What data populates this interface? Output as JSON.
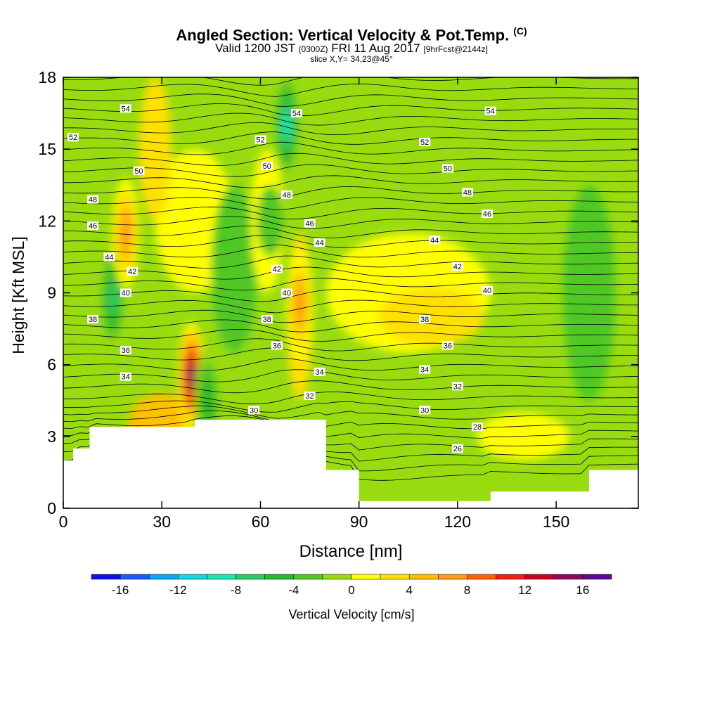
{
  "title": "Angled Section: Vertical Velocity & Pot.Temp.",
  "title_units": "(C)",
  "subtitle": {
    "valid_prefix": "Valid 1200 JST",
    "utc": "(0300Z)",
    "date": "FRI 11 Aug 2017",
    "forecast": "[9hrFcst@2144z]"
  },
  "slice_label": "slice X,Y= 34,23@45°",
  "chart_data": {
    "type": "heatmap",
    "xlabel": "Distance [nm]",
    "ylabel": "Height [Kft MSL]",
    "xlim": [
      0,
      175
    ],
    "ylim": [
      0,
      18
    ],
    "x_ticks": [
      "0",
      "30",
      "60",
      "90",
      "120",
      "150"
    ],
    "x_tick_values": [
      0,
      30,
      60,
      90,
      120,
      150
    ],
    "y_ticks": [
      "0",
      "3",
      "6",
      "9",
      "12",
      "15",
      "18"
    ],
    "y_tick_values": [
      0,
      3,
      6,
      9,
      12,
      15,
      18
    ],
    "colorbar": {
      "label": "Vertical Velocity [cm/s]",
      "ticks": [
        "-16",
        "-12",
        "-8",
        "-4",
        "0",
        "4",
        "8",
        "12",
        "16"
      ],
      "tick_values": [
        -16,
        -12,
        -8,
        -4,
        0,
        4,
        8,
        12,
        16
      ],
      "bins": [
        -18,
        -16,
        -14,
        -12,
        -10,
        -8,
        -6,
        -4,
        -2,
        0,
        2,
        4,
        6,
        8,
        10,
        12,
        14,
        16,
        18
      ],
      "colors": [
        "#1010e8",
        "#1e5af5",
        "#0aa6f0",
        "#10d8e8",
        "#18e8b0",
        "#30c860",
        "#28b828",
        "#50c828",
        "#98dc10",
        "#ffff00",
        "#ffe000",
        "#ffc000",
        "#ff9c18",
        "#ff6010",
        "#f02010",
        "#cc0020",
        "#8c0860",
        "#5c0a90"
      ]
    },
    "terrain_profile": {
      "x": [
        0,
        3,
        3,
        8,
        8,
        40,
        40,
        80,
        80,
        90,
        90,
        130,
        130,
        160,
        160,
        175
      ],
      "height": [
        2.0,
        2.0,
        2.5,
        2.5,
        3.4,
        3.4,
        3.7,
        3.7,
        1.6,
        1.6,
        0.3,
        0.3,
        0.7,
        0.7,
        1.6,
        1.6
      ]
    },
    "isentrope_labels": [
      {
        "value": "54",
        "x": 19,
        "y": 16.7
      },
      {
        "value": "52",
        "x": 3,
        "y": 15.5
      },
      {
        "value": "50",
        "x": 23,
        "y": 14.1
      },
      {
        "value": "48",
        "x": 9,
        "y": 12.9
      },
      {
        "value": "46",
        "x": 9,
        "y": 11.8
      },
      {
        "value": "44",
        "x": 14,
        "y": 10.5
      },
      {
        "value": "42",
        "x": 21,
        "y": 9.9
      },
      {
        "value": "40",
        "x": 19,
        "y": 9.0
      },
      {
        "value": "38",
        "x": 9,
        "y": 7.9
      },
      {
        "value": "36",
        "x": 19,
        "y": 6.6
      },
      {
        "value": "34",
        "x": 19,
        "y": 5.5
      },
      {
        "value": "30",
        "x": 58,
        "y": 4.1
      },
      {
        "value": "54",
        "x": 71,
        "y": 16.5
      },
      {
        "value": "52",
        "x": 60,
        "y": 15.4
      },
      {
        "value": "50",
        "x": 62,
        "y": 14.3
      },
      {
        "value": "48",
        "x": 68,
        "y": 13.1
      },
      {
        "value": "46",
        "x": 75,
        "y": 11.9
      },
      {
        "value": "44",
        "x": 78,
        "y": 11.1
      },
      {
        "value": "42",
        "x": 65,
        "y": 10.0
      },
      {
        "value": "40",
        "x": 68,
        "y": 9.0
      },
      {
        "value": "38",
        "x": 62,
        "y": 7.9
      },
      {
        "value": "36",
        "x": 65,
        "y": 6.8
      },
      {
        "value": "34",
        "x": 78,
        "y": 5.7
      },
      {
        "value": "32",
        "x": 75,
        "y": 4.7
      },
      {
        "value": "54",
        "x": 130,
        "y": 16.6
      },
      {
        "value": "52",
        "x": 110,
        "y": 15.3
      },
      {
        "value": "50",
        "x": 117,
        "y": 14.2
      },
      {
        "value": "48",
        "x": 123,
        "y": 13.2
      },
      {
        "value": "46",
        "x": 129,
        "y": 12.3
      },
      {
        "value": "44",
        "x": 113,
        "y": 11.2
      },
      {
        "value": "42",
        "x": 120,
        "y": 10.1
      },
      {
        "value": "40",
        "x": 129,
        "y": 9.1
      },
      {
        "value": "38",
        "x": 110,
        "y": 7.9
      },
      {
        "value": "36",
        "x": 117,
        "y": 6.8
      },
      {
        "value": "34",
        "x": 110,
        "y": 5.8
      },
      {
        "value": "32",
        "x": 120,
        "y": 5.1
      },
      {
        "value": "30",
        "x": 110,
        "y": 4.1
      },
      {
        "value": "28",
        "x": 126,
        "y": 3.4
      },
      {
        "value": "26",
        "x": 120,
        "y": 2.5
      }
    ],
    "velocity_features": [
      {
        "type": "updraft",
        "x": 39,
        "y": 5.5,
        "max": 16
      },
      {
        "type": "downdraft",
        "x": 68,
        "y": 16.0,
        "min": -10
      },
      {
        "type": "downdraft",
        "x": 15,
        "y": 8.8,
        "min": -8
      },
      {
        "type": "downdraft",
        "x": 44,
        "y": 4.5,
        "min": -6
      },
      {
        "type": "updraft",
        "x": 19,
        "y": 11.5,
        "max": 8
      },
      {
        "type": "updraft",
        "x": 72,
        "y": 8.5,
        "max": 8
      }
    ]
  }
}
